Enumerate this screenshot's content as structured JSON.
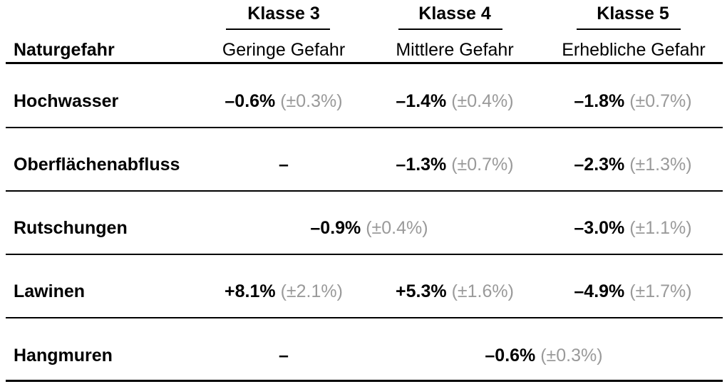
{
  "header": {
    "column_title": "Naturgefahr",
    "classes": [
      {
        "title": "Klasse 3",
        "level": "Geringe Gefahr"
      },
      {
        "title": "Klasse 4",
        "level": "Mittlere Gefahr"
      },
      {
        "title": "Klasse 5",
        "level": "Erhebliche Gefahr"
      }
    ]
  },
  "rows": [
    {
      "label": "Hochwasser",
      "cells": [
        {
          "value": "–0.6%",
          "error": "(±0.3%)"
        },
        {
          "value": "–1.4%",
          "error": "(±0.4%)"
        },
        {
          "value": "–1.8%",
          "error": "(±0.7%)"
        }
      ]
    },
    {
      "label": "Oberflächenabfluss",
      "cells": [
        {
          "value": "–",
          "error": ""
        },
        {
          "value": "–1.3%",
          "error": "(±0.7%)"
        },
        {
          "value": "–2.3%",
          "error": "(±1.3%)"
        }
      ]
    },
    {
      "label": "Rutschungen",
      "cells": [
        {
          "value": "–0.9%",
          "error": "(±0.4%)",
          "span": "Klasse 3–4"
        },
        {
          "value": "–3.0%",
          "error": "(±1.1%)"
        }
      ]
    },
    {
      "label": "Lawinen",
      "cells": [
        {
          "value": "+8.1%",
          "error": "(±2.1%)"
        },
        {
          "value": "+5.3%",
          "error": "(±1.6%)"
        },
        {
          "value": "–4.9%",
          "error": "(±1.7%)"
        }
      ]
    },
    {
      "label": "Hangmuren",
      "cells": [
        {
          "value": "–",
          "error": ""
        },
        {
          "value": "–0.6%",
          "error": "(±0.3%)",
          "span": "Klasse 4–5"
        }
      ]
    }
  ],
  "colors": {
    "text": "#000000",
    "error_text": "#9a9a9a",
    "rules": "#000000"
  }
}
